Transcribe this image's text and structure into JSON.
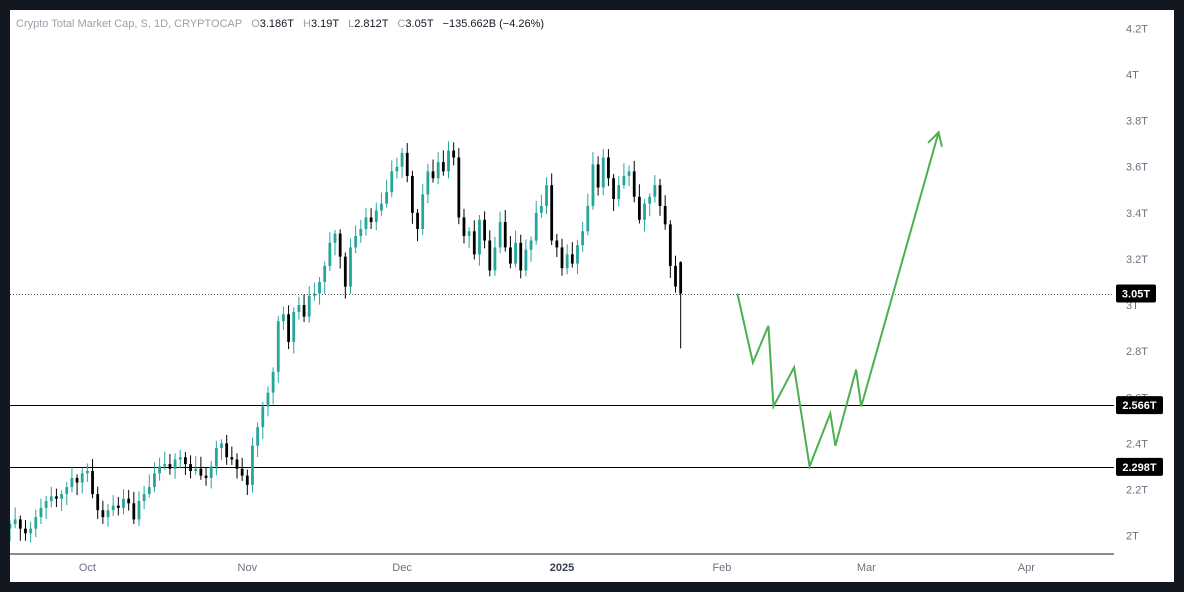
{
  "chart_data": {
    "type": "candlestick",
    "title": "Crypto Total Market Cap, S, 1D, CRYPTOCAP",
    "ohlc_label": {
      "o_key": "O",
      "o": "3.186T",
      "h_key": "H",
      "h": "3.19T",
      "l_key": "L",
      "l": "2.812T",
      "c_key": "C",
      "c": "3.05T",
      "change": "−135.662B (−4.26%)"
    },
    "y_axis": {
      "unit": "T",
      "range": [
        1.92,
        4.28
      ],
      "ticks": [
        2.0,
        2.2,
        2.4,
        2.6,
        2.8,
        3.0,
        3.2,
        3.4,
        3.6,
        3.8,
        4.0,
        4.2
      ],
      "tick_labels": [
        "2T",
        "2.2T",
        "2.4T",
        "2.6T",
        "2.8T",
        "3T",
        "3.2T",
        "3.4T",
        "3.6T",
        "3.8T",
        "4T",
        "4.2T"
      ]
    },
    "x_axis": {
      "range": [
        "2024-09-16",
        "2025-04-18"
      ],
      "ticks": [
        {
          "date": "2024-10-01",
          "label": "Oct",
          "bold": false
        },
        {
          "date": "2024-11-01",
          "label": "Nov",
          "bold": false
        },
        {
          "date": "2024-12-01",
          "label": "Dec",
          "bold": false
        },
        {
          "date": "2025-01-01",
          "label": "2025",
          "bold": true
        },
        {
          "date": "2025-02-01",
          "label": "Feb",
          "bold": false
        },
        {
          "date": "2025-03-01",
          "label": "Mar",
          "bold": false
        },
        {
          "date": "2025-04-01",
          "label": "Apr",
          "bold": false
        }
      ]
    },
    "closes": [
      2.05,
      2.07,
      2.03,
      2.01,
      2.03,
      2.08,
      2.12,
      2.15,
      2.17,
      2.16,
      2.18,
      2.21,
      2.25,
      2.23,
      2.27,
      2.28,
      2.18,
      2.11,
      2.08,
      2.11,
      2.13,
      2.12,
      2.16,
      2.14,
      2.07,
      2.15,
      2.18,
      2.21,
      2.27,
      2.3,
      2.31,
      2.29,
      2.33,
      2.34,
      2.31,
      2.28,
      2.29,
      2.26,
      2.25,
      2.3,
      2.38,
      2.4,
      2.34,
      2.33,
      2.29,
      2.26,
      2.22,
      2.39,
      2.47,
      2.56,
      2.62,
      2.71,
      2.93,
      2.96,
      2.84,
      2.97,
      3.0,
      2.95,
      3.04,
      3.05,
      3.1,
      3.17,
      3.27,
      3.31,
      3.21,
      3.08,
      3.25,
      3.3,
      3.33,
      3.38,
      3.36,
      3.41,
      3.44,
      3.49,
      3.58,
      3.6,
      3.66,
      3.56,
      3.4,
      3.33,
      3.48,
      3.58,
      3.55,
      3.62,
      3.58,
      3.67,
      3.64,
      3.38,
      3.3,
      3.32,
      3.22,
      3.37,
      3.28,
      3.15,
      3.25,
      3.36,
      3.25,
      3.18,
      3.27,
      3.15,
      3.24,
      3.28,
      3.4,
      3.43,
      3.52,
      3.28,
      3.25,
      3.16,
      3.22,
      3.18,
      3.26,
      3.32,
      3.43,
      3.61,
      3.51,
      3.64,
      3.55,
      3.46,
      3.52,
      3.56,
      3.58,
      3.47,
      3.37,
      3.44,
      3.47,
      3.52,
      3.43,
      3.35,
      3.17,
      3.08,
      3.05
    ],
    "candles_first_date": "2024-09-16",
    "projection_path": [
      {
        "date": "2025-02-04",
        "value": 3.05
      },
      {
        "date": "2025-02-07",
        "value": 2.75
      },
      {
        "date": "2025-02-10",
        "value": 2.91
      },
      {
        "date": "2025-02-11",
        "value": 2.56
      },
      {
        "date": "2025-02-15",
        "value": 2.73
      },
      {
        "date": "2025-02-18",
        "value": 2.3
      },
      {
        "date": "2025-02-22",
        "value": 2.53
      },
      {
        "date": "2025-02-23",
        "value": 2.39
      },
      {
        "date": "2025-02-27",
        "value": 2.72
      },
      {
        "date": "2025-02-28",
        "value": 2.56
      },
      {
        "date": "2025-03-15",
        "value": 3.75
      }
    ],
    "price_lines": [
      {
        "value": 3.05,
        "label": "3.05T",
        "style": "dotted"
      },
      {
        "value": 2.566,
        "label": "2.566T",
        "style": "solid"
      },
      {
        "value": 2.298,
        "label": "2.298T",
        "style": "solid"
      }
    ]
  },
  "colors": {
    "up": "#26a69a",
    "down": "#000000",
    "projection": "#4caf50",
    "line": "#000000",
    "tag_bg": "#000000"
  }
}
